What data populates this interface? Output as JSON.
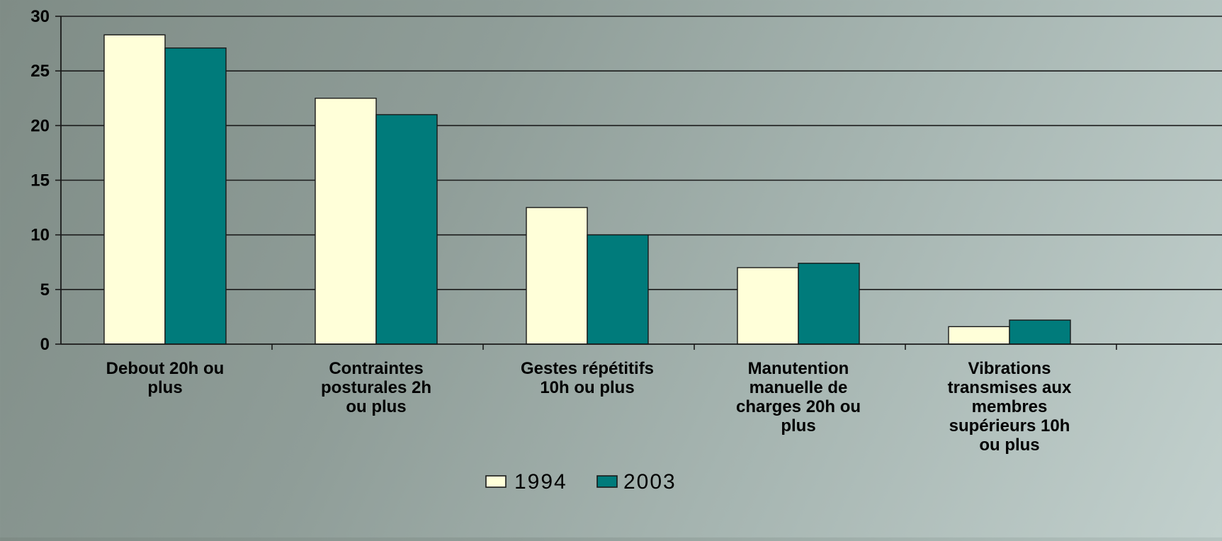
{
  "chart_data": {
    "type": "bar",
    "categories": [
      [
        "Debout 20h ou",
        "plus"
      ],
      [
        "Contraintes",
        "posturales 2h",
        "ou plus"
      ],
      [
        "Gestes répétitifs",
        "10h ou plus"
      ],
      [
        "Manutention",
        "manuelle de",
        "charges 20h ou",
        "plus"
      ],
      [
        "Vibrations",
        "transmises aux",
        "membres",
        "supérieurs 10h",
        "ou plus"
      ]
    ],
    "series": [
      {
        "name": "1994",
        "values": [
          28.3,
          22.5,
          12.5,
          7.0,
          1.6
        ],
        "color": "#ffffd9"
      },
      {
        "name": "2003",
        "values": [
          27.1,
          21.0,
          10.0,
          7.4,
          2.2
        ],
        "color": "#007b7b"
      }
    ],
    "ylim": [
      0,
      30
    ],
    "yticks": [
      0,
      5,
      10,
      15,
      20,
      25,
      30
    ],
    "grid": true,
    "legend_position": "bottom-center",
    "title": "",
    "xlabel": "",
    "ylabel": ""
  }
}
